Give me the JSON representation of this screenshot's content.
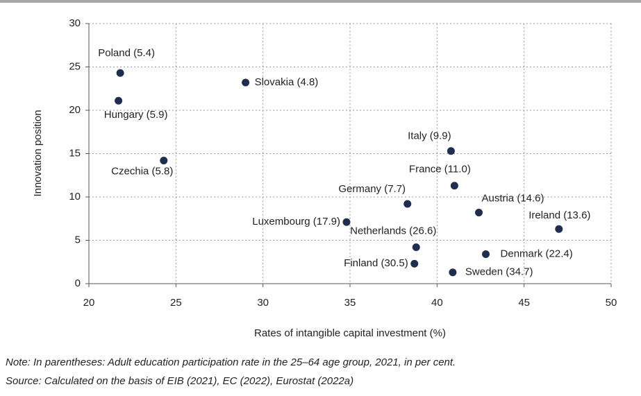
{
  "chart_data": {
    "type": "scatter",
    "x_label": "Rates of intangible capital investment (%)",
    "y_label": "Innovation position",
    "point_labels": [
      "Poland (5.4)",
      "Hungary (5.9)",
      "Slovakia (4.8)",
      "Czechia (5.8)",
      "Italy (9.9)",
      "France (11.0)",
      "Germany (7.7)",
      "Austria (14.6)",
      "Luxembourg (17.9)",
      "Ireland (13.6)",
      "Netherlands (26.6)",
      "Denmark (22.4)",
      "Finland (30.5)",
      "Sweden (34.7)"
    ],
    "x": [
      21.8,
      21.7,
      29.0,
      24.3,
      40.8,
      41.0,
      38.3,
      42.4,
      34.8,
      47.0,
      38.8,
      42.8,
      38.7,
      40.9
    ],
    "y": [
      24.3,
      21.1,
      23.2,
      14.2,
      15.3,
      11.3,
      9.2,
      8.2,
      7.1,
      6.3,
      4.2,
      3.4,
      2.3,
      1.3
    ],
    "color": "#1f2d4f",
    "xlim": [
      20,
      50
    ],
    "xticks": [
      20,
      25,
      30,
      35,
      40,
      45,
      50
    ],
    "ylim": [
      0,
      30
    ],
    "yticks": [
      0,
      5,
      10,
      15,
      20,
      25,
      30
    ],
    "grid": true
  },
  "notes": [
    "Note: In parentheses: Adult education participation rate in the 25–64 age group, 2021, in per cent.",
    "Source: Calculated on the basis of EIB (2021), EC (2022), Eurostat (2022a)"
  ]
}
